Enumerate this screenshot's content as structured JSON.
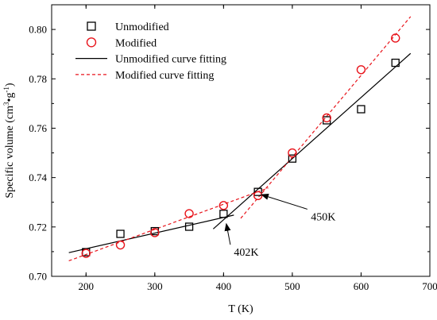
{
  "chart_data": {
    "type": "scatter",
    "xlabel": "T (K)",
    "ylabel": "Specific volume (cm³•g⁻¹)",
    "ylabel_parts": {
      "prefix": "Specific volume (cm",
      "sup1": "3",
      "mid": "•g",
      "sup2": "-1",
      "suffix": ")"
    },
    "xlim": [
      150,
      700
    ],
    "ylim": [
      0.7,
      0.81
    ],
    "xticks": [
      "200",
      "300",
      "400",
      "500",
      "600",
      "700"
    ],
    "yticks": [
      "0.70",
      "0.72",
      "0.74",
      "0.76",
      "0.78",
      "0.80"
    ],
    "legend_position": "top-left",
    "series": [
      {
        "name": "Unmodified",
        "marker": "square",
        "color": "#000000",
        "x": [
          200,
          250,
          300,
          350,
          400,
          450,
          500,
          550,
          600,
          650
        ],
        "y": [
          0.7098,
          0.7172,
          0.7183,
          0.7201,
          0.7253,
          0.7342,
          0.7477,
          0.7632,
          0.7677,
          0.7865
        ]
      },
      {
        "name": "Modified",
        "marker": "circle",
        "color": "#e8141b",
        "x": [
          200,
          250,
          300,
          350,
          400,
          450,
          500,
          550,
          600,
          650
        ],
        "y": [
          0.7093,
          0.7127,
          0.7177,
          0.7254,
          0.7287,
          0.7327,
          0.75,
          0.7642,
          0.7837,
          0.7965
        ]
      }
    ],
    "fits": [
      {
        "name": "Unmodified curve fitting",
        "style": "solid",
        "color": "#000000",
        "segments": [
          [
            [
              175,
              0.7096
            ],
            [
              415,
              0.7248
            ]
          ],
          [
            [
              385,
              0.7192
            ],
            [
              672,
              0.7903
            ]
          ]
        ]
      },
      {
        "name": "Modified curve fitting",
        "style": "dashed",
        "color": "#e8141b",
        "segments": [
          [
            [
              175,
              0.7063
            ],
            [
              465,
              0.7358
            ]
          ],
          [
            [
              425,
              0.7235
            ],
            [
              672,
              0.8052
            ]
          ]
        ]
      }
    ],
    "annotations": [
      {
        "text": "450K",
        "x": 545,
        "y": 0.7227,
        "arrow_to_x": 455,
        "arrow_to_y": 0.7331
      },
      {
        "text": "402K",
        "x": 433,
        "y": 0.7083,
        "arrow_to_x": 404,
        "arrow_to_y": 0.7213
      }
    ]
  }
}
